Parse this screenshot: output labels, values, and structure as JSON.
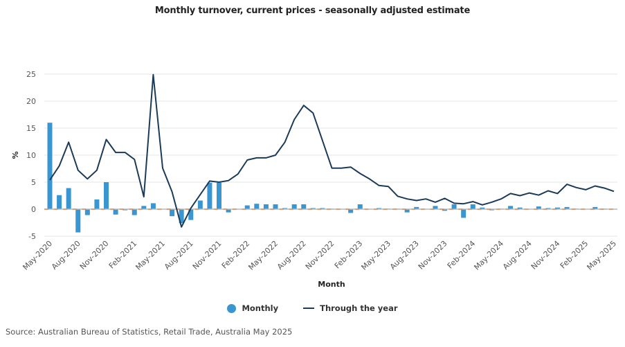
{
  "chart_data": {
    "type": "bar+line",
    "title": "Monthly turnover, current prices - seasonally adjusted estimate",
    "xlabel": "Month",
    "ylabel": "%",
    "ylim": [
      -5,
      25
    ],
    "yticks": [
      -5,
      0,
      5,
      10,
      15,
      20,
      25
    ],
    "grid": true,
    "legend_position": "bottom-center",
    "x": [
      "May-2020",
      "Jun-2020",
      "Jul-2020",
      "Aug-2020",
      "Sep-2020",
      "Oct-2020",
      "Nov-2020",
      "Dec-2020",
      "Jan-2021",
      "Feb-2021",
      "Mar-2021",
      "Apr-2021",
      "May-2021",
      "Jun-2021",
      "Jul-2021",
      "Aug-2021",
      "Sep-2021",
      "Oct-2021",
      "Nov-2021",
      "Dec-2021",
      "Jan-2022",
      "Feb-2022",
      "Mar-2022",
      "Apr-2022",
      "May-2022",
      "Jun-2022",
      "Jul-2022",
      "Aug-2022",
      "Sep-2022",
      "Oct-2022",
      "Nov-2022",
      "Dec-2022",
      "Jan-2023",
      "Feb-2023",
      "Mar-2023",
      "Apr-2023",
      "May-2023",
      "Jun-2023",
      "Jul-2023",
      "Aug-2023",
      "Sep-2023",
      "Oct-2023",
      "Nov-2023",
      "Dec-2023",
      "Jan-2024",
      "Feb-2024",
      "Mar-2024",
      "Apr-2024",
      "May-2024",
      "Jun-2024",
      "Jul-2024",
      "Aug-2024",
      "Sep-2024",
      "Oct-2024",
      "Nov-2024",
      "Dec-2024",
      "Jan-2025",
      "Feb-2025",
      "Mar-2025",
      "Apr-2025",
      "May-2025"
    ],
    "xtick_labels": [
      "May-2020",
      "Aug-2020",
      "Nov-2020",
      "Feb-2021",
      "May-2021",
      "Aug-2021",
      "Nov-2021",
      "Feb-2022",
      "May-2022",
      "Aug-2022",
      "Nov-2022",
      "Feb-2023",
      "May-2023",
      "Aug-2023",
      "Nov-2023",
      "Feb-2024",
      "May-2024",
      "Aug-2024",
      "Nov-2024",
      "Feb-2025",
      "May-2025"
    ],
    "series": [
      {
        "name": "Monthly",
        "type": "bar",
        "color": "#3a96d0",
        "values": [
          16.0,
          2.6,
          3.9,
          -4.3,
          -1.1,
          1.8,
          5.0,
          -1.0,
          -0.2,
          -1.1,
          0.6,
          1.1,
          0.0,
          -1.3,
          -2.6,
          -2.0,
          1.6,
          4.9,
          4.9,
          -0.6,
          0.0,
          0.7,
          1.0,
          0.9,
          0.9,
          0.2,
          0.9,
          0.9,
          0.2,
          0.2,
          0.1,
          0.0,
          -0.7,
          0.9,
          0.0,
          0.2,
          0.1,
          0.1,
          -0.6,
          0.4,
          0.0,
          0.6,
          -0.3,
          0.9,
          -1.6,
          0.9,
          0.3,
          -0.2,
          0.1,
          0.6,
          0.3,
          0.0,
          0.5,
          0.2,
          0.3,
          0.4,
          0.1,
          0.0,
          0.4,
          0.1,
          0.0
        ]
      },
      {
        "name": "Through the year",
        "type": "line",
        "color": "#1b3a57",
        "values": [
          5.4,
          8.0,
          12.4,
          7.2,
          5.6,
          7.2,
          12.9,
          10.5,
          10.5,
          9.2,
          2.3,
          24.9,
          7.6,
          3.2,
          -3.3,
          0.2,
          2.7,
          5.2,
          5.0,
          5.3,
          6.5,
          9.1,
          9.5,
          9.5,
          10.0,
          12.4,
          16.6,
          19.2,
          17.8,
          12.7,
          7.6,
          7.6,
          7.8,
          6.6,
          5.6,
          4.4,
          4.2,
          2.4,
          1.9,
          1.6,
          1.9,
          1.3,
          2.0,
          1.1,
          1.0,
          1.4,
          0.8,
          1.3,
          1.9,
          2.9,
          2.5,
          3.0,
          2.6,
          3.4,
          2.9,
          4.6,
          4.0,
          3.6,
          4.3,
          3.9,
          3.3
        ]
      }
    ]
  },
  "legend": {
    "monthly_label": "Monthly",
    "monthly_color": "#3a96d0",
    "tty_label": "Through the year",
    "tty_color": "#1b3a57"
  },
  "source": "Source: Australian Bureau of Statistics, Retail Trade, Australia May 2025"
}
